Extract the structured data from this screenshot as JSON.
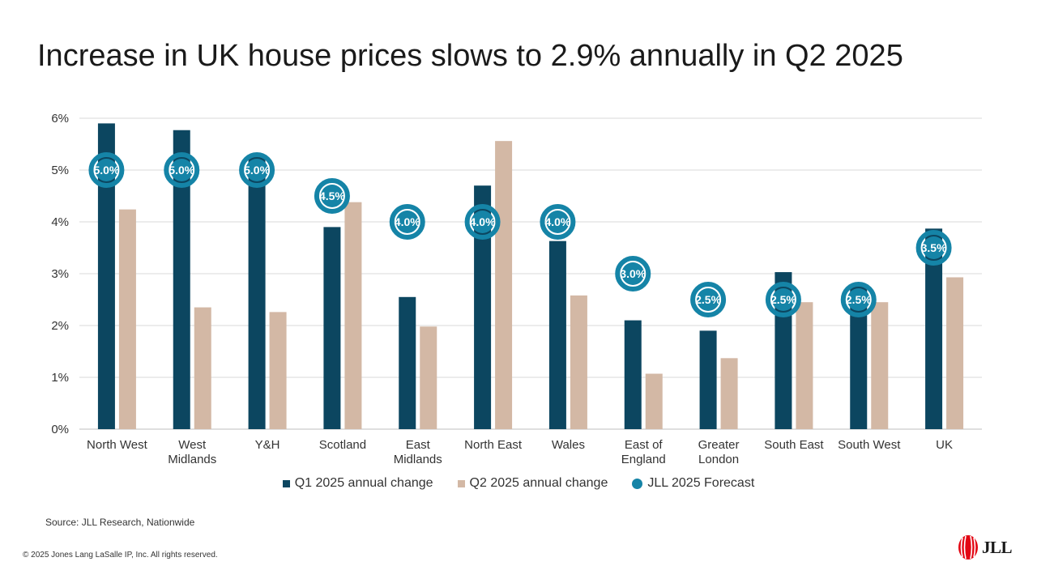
{
  "title": "Increase in UK house prices slows to 2.9% annually in Q2 2025",
  "source": "Source: JLL Research, Nationwide",
  "copyright": "© 2025 Jones Lang LaSalle IP, Inc. All rights reserved.",
  "logo": {
    "text": "JLL",
    "icon": "jll-logo-icon"
  },
  "colors": {
    "q1": "#0c4660",
    "q2": "#d3b8a5",
    "forecast": "#1584a7"
  },
  "chart_data": {
    "type": "bar",
    "categories": [
      "North West",
      "West Midlands",
      "Y&H",
      "Scotland",
      "East Midlands",
      "North East",
      "Wales",
      "East of England",
      "Greater London",
      "South East",
      "South West",
      "UK"
    ],
    "category_lines": [
      [
        "North West"
      ],
      [
        "West",
        "Midlands"
      ],
      [
        "Y&H"
      ],
      [
        "Scotland"
      ],
      [
        "East",
        "Midlands"
      ],
      [
        "North East"
      ],
      [
        "Wales"
      ],
      [
        "East of",
        "England"
      ],
      [
        "Greater",
        "London"
      ],
      [
        "South East"
      ],
      [
        "South West"
      ],
      [
        "UK"
      ]
    ],
    "series": [
      {
        "name": "Q1 2025 annual change",
        "kind": "bar",
        "values": [
          5.9,
          5.77,
          5.25,
          3.9,
          2.55,
          4.7,
          3.63,
          2.1,
          1.9,
          3.03,
          2.77,
          3.87
        ]
      },
      {
        "name": "Q2 2025 annual change",
        "kind": "bar",
        "values": [
          4.24,
          2.35,
          2.26,
          4.38,
          1.98,
          5.56,
          2.58,
          1.07,
          1.37,
          2.45,
          2.45,
          2.93
        ]
      },
      {
        "name": "JLL 2025 Forecast",
        "kind": "marker",
        "values": [
          5.0,
          5.0,
          5.0,
          4.5,
          4.0,
          4.0,
          4.0,
          3.0,
          2.5,
          2.5,
          2.5,
          3.5
        ]
      }
    ],
    "forecast_labels": [
      "5.0%",
      "5.0%",
      "5.0%",
      "4.5%",
      "4.0%",
      "4.0%",
      "4.0%",
      "3.0%",
      "2.5%",
      "2.5%",
      "2.5%",
      "3.5%"
    ],
    "y_ticks": [
      "0%",
      "1%",
      "2%",
      "3%",
      "4%",
      "5%",
      "6%"
    ],
    "ylim": [
      0,
      6
    ],
    "grid": true,
    "legend_position": "bottom"
  }
}
